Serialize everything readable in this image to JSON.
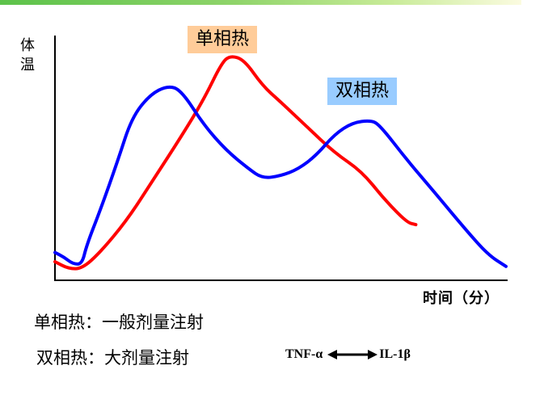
{
  "header": {
    "bar_gradient": [
      "#5cc24a",
      "#8fd46a",
      "#c8eb98",
      "#fbfbe0"
    ]
  },
  "chart_data": {
    "type": "line",
    "title": "",
    "xlabel": "时间（分）",
    "ylabel": "体温",
    "grid": false,
    "axis_ticks": "none",
    "legend_position": "inline labels",
    "series": [
      {
        "name": "单相热",
        "color": "#ff0000",
        "note": "single-phase fever: one peak",
        "points": [
          [
            0.0,
            0.08
          ],
          [
            0.03,
            0.05
          ],
          [
            0.06,
            0.05
          ],
          [
            0.1,
            0.12
          ],
          [
            0.16,
            0.26
          ],
          [
            0.22,
            0.44
          ],
          [
            0.28,
            0.62
          ],
          [
            0.33,
            0.78
          ],
          [
            0.37,
            0.94
          ],
          [
            0.39,
            0.97
          ],
          [
            0.42,
            0.95
          ],
          [
            0.46,
            0.84
          ],
          [
            0.5,
            0.77
          ],
          [
            0.56,
            0.66
          ],
          [
            0.62,
            0.55
          ],
          [
            0.68,
            0.47
          ],
          [
            0.73,
            0.35
          ],
          [
            0.78,
            0.25
          ],
          [
            0.8,
            0.24
          ]
        ]
      },
      {
        "name": "双相热",
        "color": "#0000ff",
        "note": "biphasic fever: two peaks",
        "points": [
          [
            0.0,
            0.12
          ],
          [
            0.02,
            0.1
          ],
          [
            0.04,
            0.07
          ],
          [
            0.06,
            0.07
          ],
          [
            0.07,
            0.15
          ],
          [
            0.1,
            0.3
          ],
          [
            0.14,
            0.52
          ],
          [
            0.17,
            0.7
          ],
          [
            0.21,
            0.8
          ],
          [
            0.25,
            0.84
          ],
          [
            0.28,
            0.82
          ],
          [
            0.33,
            0.67
          ],
          [
            0.38,
            0.56
          ],
          [
            0.43,
            0.48
          ],
          [
            0.46,
            0.44
          ],
          [
            0.5,
            0.45
          ],
          [
            0.54,
            0.48
          ],
          [
            0.58,
            0.54
          ],
          [
            0.62,
            0.63
          ],
          [
            0.66,
            0.68
          ],
          [
            0.7,
            0.69
          ],
          [
            0.72,
            0.67
          ],
          [
            0.78,
            0.52
          ],
          [
            0.85,
            0.36
          ],
          [
            0.91,
            0.22
          ],
          [
            0.96,
            0.11
          ],
          [
            1.0,
            0.06
          ]
        ]
      }
    ]
  },
  "labels": {
    "y_axis": [
      "体",
      "温"
    ],
    "x_axis": "时间（分）",
    "tag_single": "单相热",
    "tag_double": "双相热"
  },
  "notes": {
    "line1": "单相热：一般剂量注射",
    "line2": "双相热：大剂量注射",
    "cytokine_left": "TNF-α",
    "cytokine_right": "IL-1β",
    "arrow_icon": "double-headed-arrow"
  }
}
